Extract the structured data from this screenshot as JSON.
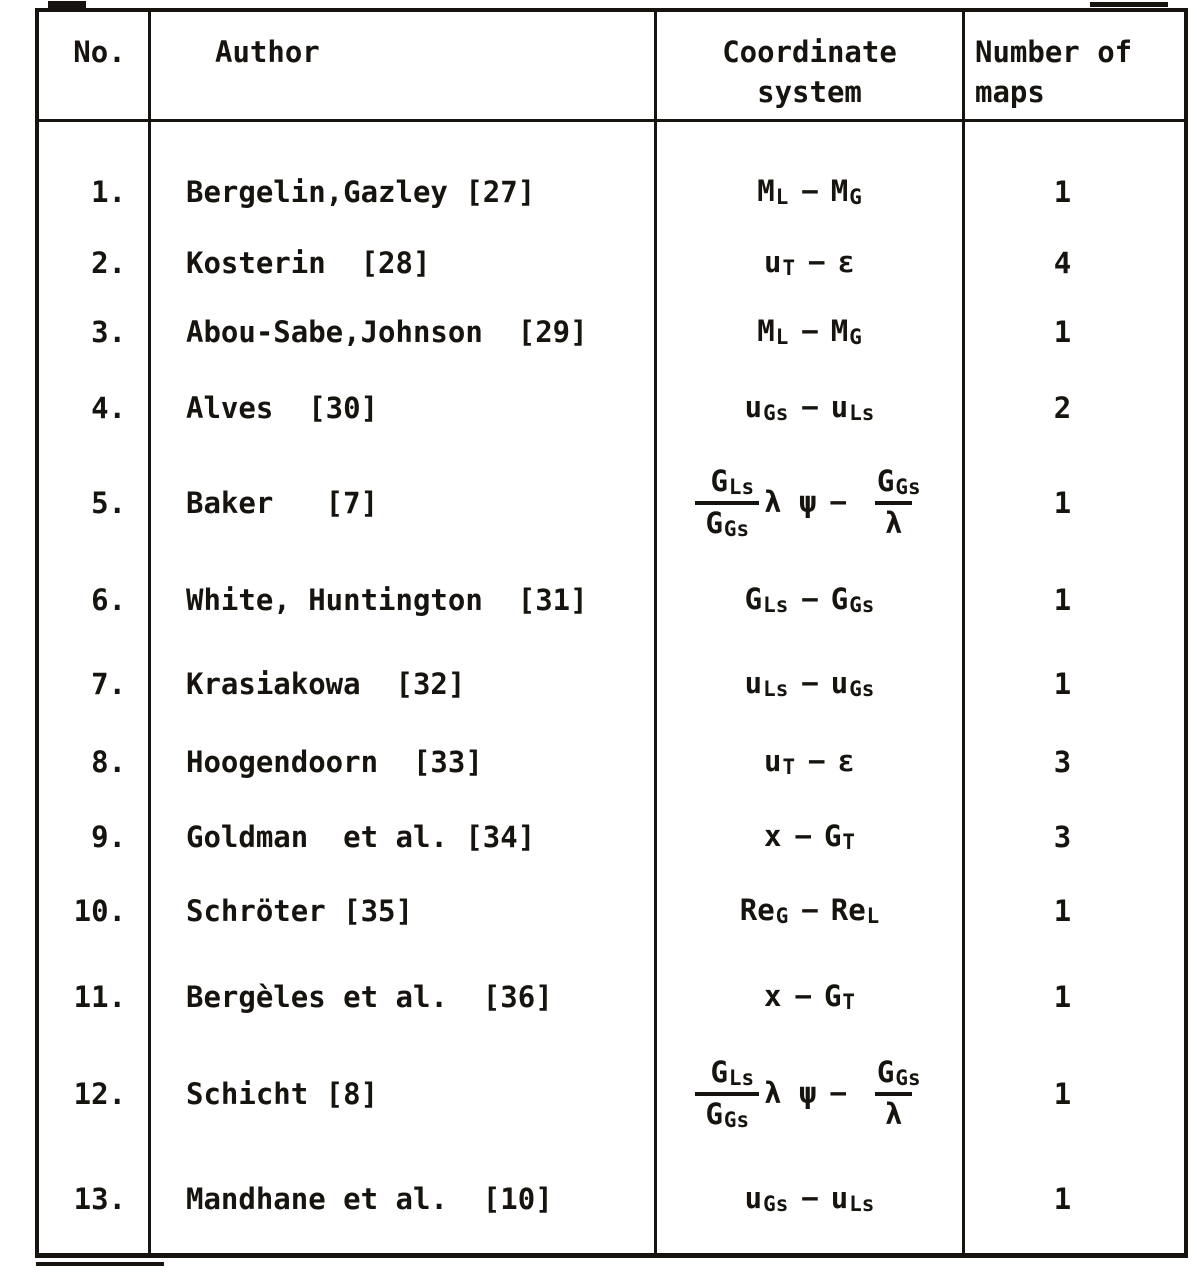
{
  "document": {
    "dash": "−",
    "colors": {
      "ink": "#17140f",
      "paper": "#ffffff"
    },
    "header": {
      "no": "No.",
      "author": "Author",
      "coordinate_line1": "Coordinate",
      "coordinate_line2": "system",
      "maps_line1": "Number of",
      "maps_line2": "maps"
    },
    "rows": [
      {
        "no": "1.",
        "author": "Bergelin,Gazley [27]",
        "maps": "1",
        "coord": [
          {
            "k": "v",
            "b": "M",
            "s": "L"
          },
          {
            "k": "d"
          },
          {
            "k": "v",
            "b": "M",
            "s": "G"
          }
        ]
      },
      {
        "no": "2.",
        "author": "Kosterin  [28]",
        "maps": "4",
        "coord": [
          {
            "k": "v",
            "b": "u",
            "s": "T"
          },
          {
            "k": "d"
          },
          {
            "k": "t",
            "t": "ε"
          }
        ]
      },
      {
        "no": "3.",
        "author": "Abou-Sabe,Johnson  [29]",
        "maps": "1",
        "coord": [
          {
            "k": "v",
            "b": "M",
            "s": "L"
          },
          {
            "k": "d"
          },
          {
            "k": "v",
            "b": "M",
            "s": "G"
          }
        ]
      },
      {
        "no": "4.",
        "author": "Alves  [30]",
        "maps": "2",
        "coord": [
          {
            "k": "v",
            "b": "u",
            "s": "Gs"
          },
          {
            "k": "d"
          },
          {
            "k": "v",
            "b": "u",
            "s": "Ls"
          }
        ]
      },
      {
        "no": "5.",
        "author": "Baker   [7]",
        "maps": "1",
        "coord": [
          {
            "k": "f",
            "n": [
              {
                "k": "v",
                "b": "G",
                "s": "Ls"
              }
            ],
            "d": [
              {
                "k": "v",
                "b": "G",
                "s": "Gs"
              }
            ]
          },
          {
            "k": "t",
            "t": "λ ψ"
          },
          {
            "k": "d"
          },
          {
            "k": "f",
            "n": [
              {
                "k": "v",
                "b": "G",
                "s": "Gs"
              }
            ],
            "d": [
              {
                "k": "t",
                "t": "λ"
              }
            ]
          }
        ]
      },
      {
        "no": "6.",
        "author": "White, Huntington  [31]",
        "maps": "1",
        "coord": [
          {
            "k": "v",
            "b": "G",
            "s": "Ls"
          },
          {
            "k": "d"
          },
          {
            "k": "v",
            "b": "G",
            "s": "Gs"
          }
        ]
      },
      {
        "no": "7.",
        "author": "Krasiakowa  [32]",
        "maps": "1",
        "coord": [
          {
            "k": "v",
            "b": "u",
            "s": "Ls"
          },
          {
            "k": "d"
          },
          {
            "k": "v",
            "b": "u",
            "s": "Gs"
          }
        ]
      },
      {
        "no": "8.",
        "author": "Hoogendoorn  [33]",
        "maps": "3",
        "coord": [
          {
            "k": "v",
            "b": "u",
            "s": "T"
          },
          {
            "k": "d"
          },
          {
            "k": "t",
            "t": "ε"
          }
        ]
      },
      {
        "no": "9.",
        "author": "Goldman  et al. [34]",
        "maps": "3",
        "coord": [
          {
            "k": "t",
            "t": "x"
          },
          {
            "k": "d"
          },
          {
            "k": "v",
            "b": "G",
            "s": "T"
          }
        ]
      },
      {
        "no": "10.",
        "author": "Schröter [35]",
        "maps": "1",
        "coord": [
          {
            "k": "v",
            "b": "Re",
            "s": "G"
          },
          {
            "k": "d"
          },
          {
            "k": "v",
            "b": "Re",
            "s": "L"
          }
        ]
      },
      {
        "no": "11.",
        "author": "Bergèles et al.  [36]",
        "maps": "1",
        "coord": [
          {
            "k": "t",
            "t": "x"
          },
          {
            "k": "d"
          },
          {
            "k": "v",
            "b": "G",
            "s": "T"
          }
        ]
      },
      {
        "no": "12.",
        "author": "Schicht [8]",
        "maps": "1",
        "coord": [
          {
            "k": "f",
            "n": [
              {
                "k": "v",
                "b": "G",
                "s": "Ls"
              }
            ],
            "d": [
              {
                "k": "v",
                "b": "G",
                "s": "Gs"
              }
            ]
          },
          {
            "k": "t",
            "t": "λ ψ"
          },
          {
            "k": "d"
          },
          {
            "k": "f",
            "n": [
              {
                "k": "v",
                "b": "G",
                "s": "Gs"
              }
            ],
            "d": [
              {
                "k": "t",
                "t": "λ"
              }
            ]
          }
        ]
      },
      {
        "no": "13.",
        "author": "Mandhane et al.  [10]",
        "maps": "1",
        "coord": [
          {
            "k": "v",
            "b": "u",
            "s": "Gs"
          },
          {
            "k": "d"
          },
          {
            "k": "v",
            "b": "u",
            "s": "Ls"
          }
        ]
      }
    ]
  }
}
